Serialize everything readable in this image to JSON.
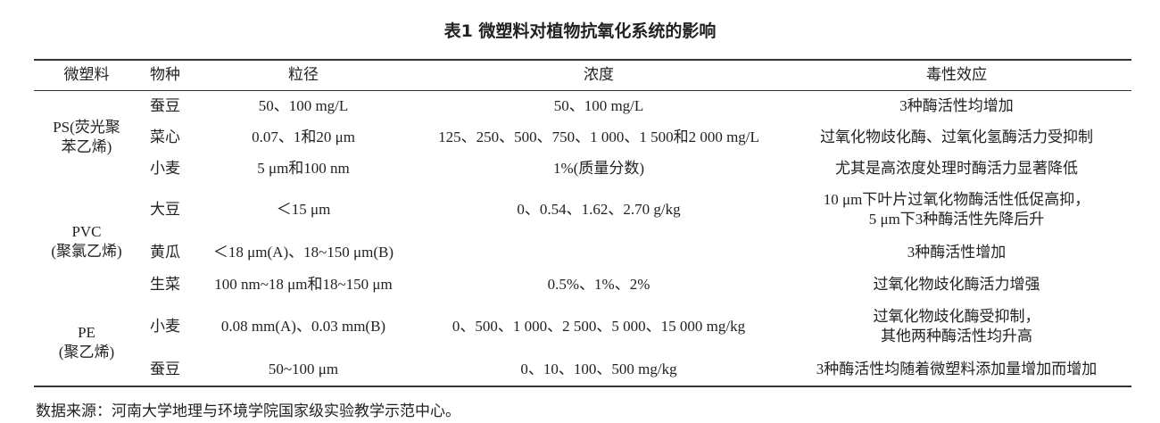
{
  "title": "表1  微塑料对植物抗氧化系统的影响",
  "table": {
    "header": [
      "微塑料",
      "物种",
      "粒径",
      "浓度",
      "毒性效应"
    ],
    "groups": [
      {
        "material": "PS(荧光聚\n苯乙烯)",
        "rows": [
          [
            "蚕豆",
            "50、100 mg/L",
            "50、100 mg/L",
            "3种酶活性均增加"
          ],
          [
            "菜心",
            "0.07、1和20 μm",
            "125、250、500、750、1 000、1 500和2 000 mg/L",
            "过氧化物歧化酶、过氧化氢酶活力受抑制"
          ],
          [
            "小麦",
            "5 μm和100 nm",
            "1%(质量分数)",
            "尤其是高浓度处理时酶活力显著降低"
          ]
        ]
      },
      {
        "material": "PVC\n(聚氯乙烯)",
        "rows": [
          [
            "大豆",
            "＜15 μm",
            "0、0.54、1.62、2.70 g/kg",
            "10 μm下叶片过氧化物酶活性低促高抑，\n5 μm下3种酶活性先降后升"
          ],
          [
            "黄瓜",
            "＜18 μm(A)、18~150 μm(B)",
            null,
            "3种酶活性增加"
          ],
          [
            "生菜",
            "100 nm~18 μm和18~150 μm",
            "0.5%、1%、2%",
            "过氧化物歧化酶活力增强"
          ]
        ]
      },
      {
        "material": "PE\n(聚乙烯)",
        "rows": [
          [
            "小麦",
            "0.08 mm(A)、0.03 mm(B)",
            "0、500、1 000、2 500、5 000、15 000 mg/kg",
            "过氧化物歧化酶受抑制，\n其他两种酶活性均升高"
          ],
          [
            "蚕豆",
            "50~100 μm",
            "0、10、100、500 mg/kg",
            "3种酶活性均随着微塑料添加量增加而增加"
          ]
        ]
      }
    ]
  },
  "note": "数据来源：河南大学地理与环境学院国家级实验教学示范中心。"
}
